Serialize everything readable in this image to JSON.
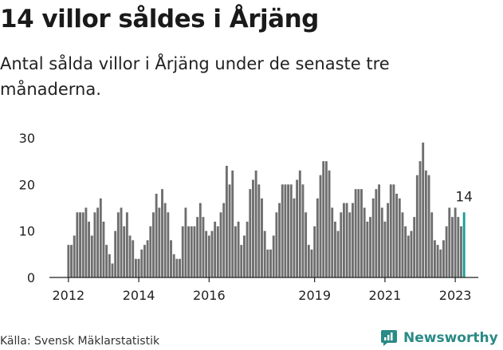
{
  "title": "14 villor såldes i Årjäng",
  "subtitle": "Antal sålda villor i Årjäng under de senaste tre månaderna.",
  "source": "Källa: Svensk Mäklarstatistik",
  "brand": {
    "name": "Newsworthy",
    "icon": "newsworthy-logo-icon",
    "color": "#2a8a86"
  },
  "colors": {
    "bar": "#6e6e6e",
    "highlight": "#1a9c96",
    "axis": "#222222",
    "grid": "#cccccc"
  },
  "chart_data": {
    "type": "bar",
    "x_start": "2012-01",
    "interval": "month",
    "x_tick_labels": [
      "2012",
      "2014",
      "2016",
      "2019",
      "2021",
      "2023"
    ],
    "x_tick_values": [
      "2012-01",
      "2014-01",
      "2016-01",
      "2019-01",
      "2021-01",
      "2023-01"
    ],
    "y_ticks": [
      0,
      10,
      20,
      30
    ],
    "ylim": [
      0,
      32
    ],
    "grid": false,
    "values": [
      7,
      7,
      9,
      14,
      14,
      14,
      15,
      12,
      9,
      14,
      15,
      17,
      12,
      7,
      5,
      3,
      10,
      14,
      15,
      11,
      14,
      9,
      8,
      4,
      4,
      6,
      7,
      8,
      11,
      14,
      18,
      15,
      19,
      16,
      14,
      8,
      5,
      4,
      4,
      11,
      15,
      11,
      11,
      11,
      13,
      16,
      13,
      10,
      9,
      10,
      12,
      11,
      14,
      16,
      24,
      20,
      23,
      11,
      12,
      7,
      9,
      12,
      19,
      21,
      23,
      20,
      17,
      10,
      6,
      6,
      9,
      14,
      16,
      20,
      20,
      20,
      20,
      17,
      21,
      23,
      20,
      14,
      7,
      6,
      11,
      17,
      22,
      25,
      25,
      23,
      15,
      12,
      10,
      14,
      16,
      16,
      14,
      16,
      19,
      19,
      19,
      15,
      12,
      13,
      17,
      19,
      20,
      15,
      12,
      16,
      20,
      20,
      18,
      17,
      14,
      11,
      9,
      10,
      13,
      22,
      25,
      29,
      23,
      22,
      14,
      8,
      7,
      6,
      8,
      11,
      15,
      13,
      15,
      13,
      11,
      14
    ],
    "highlight_last": true,
    "last_value_label": "14"
  }
}
